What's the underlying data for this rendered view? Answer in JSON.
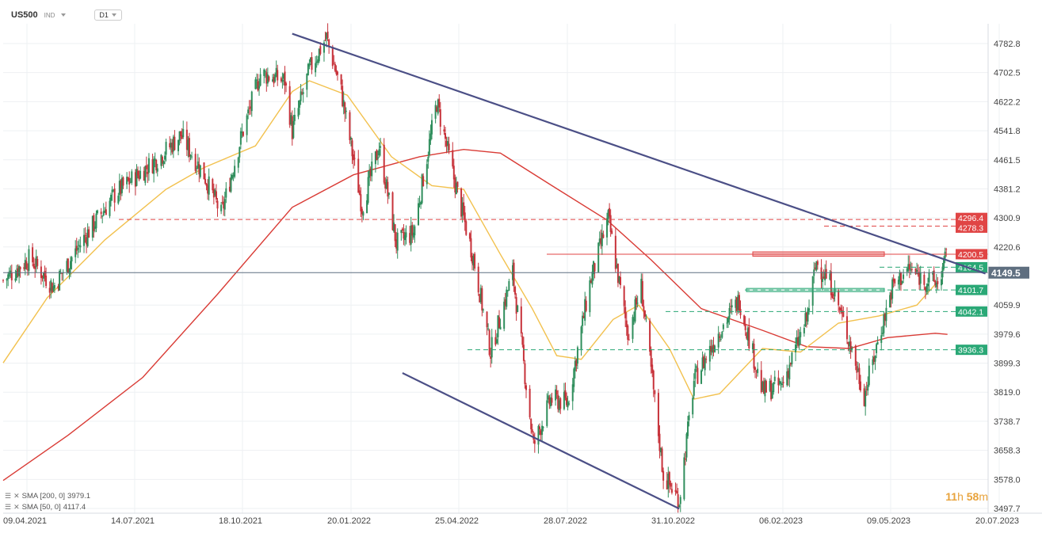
{
  "header": {
    "symbol": "US500",
    "market": "IND",
    "timeframe": "D1"
  },
  "indicators": [
    {
      "label": "SMA  [200,  0]",
      "value": "3979.1",
      "color": "#d93b35"
    },
    {
      "label": "SMA  [50,  0]",
      "value": "4117.4",
      "color": "#f2c14e"
    }
  ],
  "timer": {
    "h": "11",
    "h_unit": "h",
    "m": "58",
    "m_unit": "m"
  },
  "chart_data": {
    "type": "candlestick",
    "x_tick_labels": [
      "09.04.2021",
      "14.07.2021",
      "18.10.2021",
      "20.01.2022",
      "25.04.2022",
      "28.07.2022",
      "31.10.2022",
      "06.02.2023",
      "09.05.2023",
      "20.07.2023"
    ],
    "y_tick_labels": [
      "4782.8",
      "4702.5",
      "4622.2",
      "4541.8",
      "4461.5",
      "4381.2",
      "4300.9",
      "4220.6",
      "4059.9",
      "3979.6",
      "3899.3",
      "3819.0",
      "3738.7",
      "3658.3",
      "3578.0",
      "3497.7"
    ],
    "ylim": [
      3497.7,
      4822
    ],
    "last_price": {
      "label": "4149.5",
      "value": 4149.5,
      "color": "#5f6f80"
    },
    "price_levels": [
      {
        "label": "4296.4",
        "value": 4296.4,
        "color": "#e04545",
        "style": "dashed"
      },
      {
        "label": "4278.3",
        "value": 4278.3,
        "color": "#e04545",
        "style": "dashed"
      },
      {
        "label": "4200.5",
        "value": 4200.5,
        "color": "#e04545",
        "style": "solid"
      },
      {
        "label": "4164.5",
        "value": 4164.5,
        "color": "#2aa876",
        "style": "dashed"
      },
      {
        "label": "4101.7",
        "value": 4101.7,
        "color": "#2aa876",
        "style": "dashed"
      },
      {
        "label": "4042.1",
        "value": 4042.1,
        "color": "#2aa876",
        "style": "dashed"
      },
      {
        "label": "3936.3",
        "value": 3936.3,
        "color": "#2aa876",
        "style": "dashed"
      }
    ],
    "trendlines": [
      {
        "from": [
          "2021-12-01",
          4810
        ],
        "to": [
          "2023-06-20",
          4147
        ],
        "color": "#4b4f86"
      },
      {
        "from": [
          "2022-03-01",
          3872
        ],
        "to": [
          "2022-10-13",
          3497
        ],
        "color": "#4b4f86"
      }
    ],
    "sma200": {
      "color": "#d93b35",
      "points": [
        [
          "2021-04-09",
          3575
        ],
        [
          "2021-06-01",
          3700
        ],
        [
          "2021-08-01",
          3860
        ],
        [
          "2021-10-01",
          4090
        ],
        [
          "2021-12-01",
          4330
        ],
        [
          "2022-01-20",
          4420
        ],
        [
          "2022-03-15",
          4470
        ],
        [
          "2022-04-20",
          4490
        ],
        [
          "2022-05-20",
          4480
        ],
        [
          "2022-07-01",
          4390
        ],
        [
          "2022-08-15",
          4295
        ],
        [
          "2022-09-20",
          4185
        ],
        [
          "2022-10-31",
          4050
        ],
        [
          "2022-12-20",
          3990
        ],
        [
          "2023-01-25",
          3945
        ],
        [
          "2023-03-01",
          3940
        ],
        [
          "2023-04-01",
          3970
        ],
        [
          "2023-05-10",
          3982
        ],
        [
          "2023-05-20",
          3979
        ]
      ]
    },
    "sma50": {
      "color": "#f2c14e",
      "points": [
        [
          "2021-04-09",
          3900
        ],
        [
          "2021-05-15",
          4080
        ],
        [
          "2021-07-01",
          4240
        ],
        [
          "2021-08-20",
          4380
        ],
        [
          "2021-09-20",
          4440
        ],
        [
          "2021-11-01",
          4500
        ],
        [
          "2021-12-01",
          4650
        ],
        [
          "2021-12-15",
          4680
        ],
        [
          "2022-01-15",
          4640
        ],
        [
          "2022-02-20",
          4470
        ],
        [
          "2022-03-25",
          4390
        ],
        [
          "2022-04-20",
          4380
        ],
        [
          "2022-05-20",
          4200
        ],
        [
          "2022-06-15",
          4050
        ],
        [
          "2022-07-05",
          3920
        ],
        [
          "2022-07-25",
          3910
        ],
        [
          "2022-08-20",
          4020
        ],
        [
          "2022-09-10",
          4060
        ],
        [
          "2022-10-05",
          3940
        ],
        [
          "2022-10-25",
          3800
        ],
        [
          "2022-11-15",
          3815
        ],
        [
          "2022-12-20",
          3940
        ],
        [
          "2023-01-20",
          3930
        ],
        [
          "2023-02-20",
          4010
        ],
        [
          "2023-03-25",
          4030
        ],
        [
          "2023-04-25",
          4060
        ],
        [
          "2023-05-10",
          4117
        ]
      ]
    },
    "close_path": [
      [
        "2021-04-09",
        4128
      ],
      [
        "2021-05-01",
        4190
      ],
      [
        "2021-05-20",
        4110
      ],
      [
        "2021-06-15",
        4250
      ],
      [
        "2021-07-10",
        4370
      ],
      [
        "2021-08-15",
        4470
      ],
      [
        "2021-09-01",
        4530
      ],
      [
        "2021-09-20",
        4420
      ],
      [
        "2021-10-04",
        4310
      ],
      [
        "2021-10-20",
        4520
      ],
      [
        "2021-11-05",
        4700
      ],
      [
        "2021-11-25",
        4680
      ],
      [
        "2021-12-01",
        4540
      ],
      [
        "2021-12-15",
        4710
      ],
      [
        "2021-12-29",
        4800
      ],
      [
        "2022-01-10",
        4650
      ],
      [
        "2022-01-27",
        4330
      ],
      [
        "2022-02-10",
        4500
      ],
      [
        "2022-02-24",
        4230
      ],
      [
        "2022-03-10",
        4260
      ],
      [
        "2022-03-29",
        4620
      ],
      [
        "2022-04-12",
        4410
      ],
      [
        "2022-04-28",
        4190
      ],
      [
        "2022-05-12",
        3930
      ],
      [
        "2022-05-30",
        4150
      ],
      [
        "2022-06-16",
        3670
      ],
      [
        "2022-06-30",
        3800
      ],
      [
        "2022-07-14",
        3790
      ],
      [
        "2022-08-01",
        4120
      ],
      [
        "2022-08-16",
        4300
      ],
      [
        "2022-09-01",
        3980
      ],
      [
        "2022-09-12",
        4110
      ],
      [
        "2022-09-30",
        3590
      ],
      [
        "2022-10-13",
        3520
      ],
      [
        "2022-10-25",
        3850
      ],
      [
        "2022-11-15",
        3990
      ],
      [
        "2022-12-01",
        4075
      ],
      [
        "2022-12-20",
        3820
      ],
      [
        "2023-01-05",
        3840
      ],
      [
        "2023-01-25",
        4020
      ],
      [
        "2023-02-02",
        4180
      ],
      [
        "2023-02-15",
        4110
      ],
      [
        "2023-03-01",
        3960
      ],
      [
        "2023-03-13",
        3810
      ],
      [
        "2023-03-25",
        3970
      ],
      [
        "2023-04-05",
        4110
      ],
      [
        "2023-04-18",
        4160
      ],
      [
        "2023-05-01",
        4130
      ],
      [
        "2023-05-12",
        4120
      ],
      [
        "2023-05-19",
        4191
      ]
    ]
  }
}
